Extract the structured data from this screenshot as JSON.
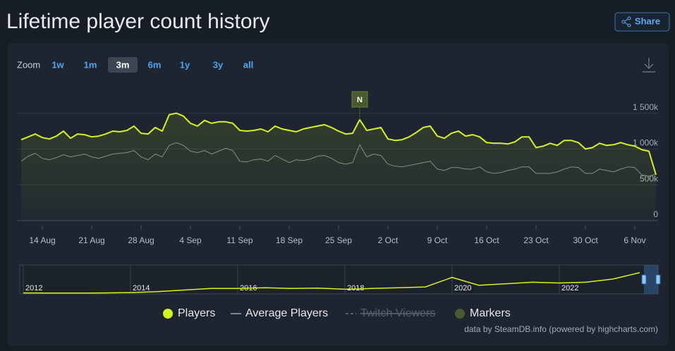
{
  "header": {
    "title": "Lifetime player count history",
    "share": "Share"
  },
  "zoom": {
    "label": "Zoom",
    "options": [
      "1w",
      "1m",
      "3m",
      "6m",
      "1y",
      "3y",
      "all"
    ],
    "selected": 2
  },
  "chart_data": {
    "type": "line",
    "categories": [
      null,
      null,
      null,
      "14 Aug",
      null,
      null,
      null,
      null,
      null,
      null,
      "21 Aug",
      null,
      null,
      null,
      null,
      null,
      null,
      "28 Aug",
      null,
      null,
      null,
      null,
      null,
      null,
      "4 Sep",
      null,
      null,
      null,
      null,
      null,
      null,
      "11 Sep",
      null,
      null,
      null,
      null,
      null,
      null,
      "18 Sep",
      null,
      null,
      null,
      null,
      null,
      null,
      "25 Sep",
      null,
      null,
      null,
      null,
      null,
      null,
      "2 Oct",
      null,
      null,
      null,
      null,
      null,
      null,
      "9 Oct",
      null,
      null,
      null,
      null,
      null,
      null,
      "16 Oct",
      null,
      null,
      null,
      null,
      null,
      null,
      "23 Oct",
      null,
      null,
      null,
      null,
      null,
      null,
      "30 Oct",
      null,
      null,
      null,
      null,
      null,
      null,
      "6 Nov",
      null,
      null,
      null
    ],
    "series": [
      {
        "name": "Players",
        "color": "#d2f51f",
        "values": [
          1130000,
          1170000,
          1210000,
          1160000,
          1140000,
          1180000,
          1250000,
          1150000,
          1210000,
          1200000,
          1170000,
          1180000,
          1210000,
          1250000,
          1240000,
          1260000,
          1320000,
          1220000,
          1210000,
          1300000,
          1250000,
          1480000,
          1500000,
          1460000,
          1360000,
          1320000,
          1400000,
          1360000,
          1380000,
          1380000,
          1360000,
          1260000,
          1250000,
          1260000,
          1280000,
          1240000,
          1320000,
          1280000,
          1260000,
          1240000,
          1280000,
          1300000,
          1320000,
          1340000,
          1300000,
          1250000,
          1210000,
          1220000,
          1410000,
          1260000,
          1280000,
          1300000,
          1140000,
          1120000,
          1130000,
          1170000,
          1230000,
          1300000,
          1320000,
          1180000,
          1150000,
          1220000,
          1250000,
          1180000,
          1200000,
          1170000,
          1090000,
          1080000,
          1080000,
          1070000,
          1100000,
          1170000,
          1170000,
          1020000,
          1040000,
          1080000,
          1050000,
          1120000,
          1120000,
          1090000,
          1000000,
          1020000,
          1080000,
          1050000,
          1060000,
          1090000,
          1060000,
          1040000,
          990000,
          970000,
          640000
        ]
      },
      {
        "name": "Average Players",
        "color": "#7f858c",
        "values": [
          830000,
          900000,
          940000,
          870000,
          850000,
          880000,
          920000,
          890000,
          910000,
          930000,
          890000,
          870000,
          900000,
          930000,
          940000,
          950000,
          980000,
          890000,
          850000,
          930000,
          890000,
          1050000,
          1090000,
          1050000,
          970000,
          950000,
          980000,
          930000,
          970000,
          1010000,
          980000,
          830000,
          820000,
          850000,
          860000,
          830000,
          910000,
          860000,
          810000,
          850000,
          840000,
          860000,
          900000,
          910000,
          870000,
          810000,
          790000,
          810000,
          1060000,
          890000,
          930000,
          910000,
          790000,
          760000,
          750000,
          770000,
          790000,
          810000,
          830000,
          720000,
          700000,
          740000,
          740000,
          720000,
          720000,
          750000,
          680000,
          660000,
          670000,
          700000,
          720000,
          750000,
          750000,
          660000,
          660000,
          660000,
          680000,
          720000,
          750000,
          740000,
          660000,
          660000,
          720000,
          700000,
          680000,
          720000,
          750000,
          740000,
          640000,
          620000,
          650000
        ]
      }
    ],
    "hidden_series": [
      {
        "name": "Twitch Viewers",
        "color": "#56606b"
      }
    ],
    "markers": {
      "name": "Markers",
      "color": "#4b5a2e",
      "items": [
        {
          "at": 48,
          "label": "N"
        }
      ]
    },
    "ylim": [
      0,
      1900000
    ],
    "yticks": [
      0,
      {
        "value": 500000,
        "label": "500k"
      },
      {
        "value": 1000000,
        "label": "1 000k"
      },
      {
        "value": 1500000,
        "label": "1 500k"
      }
    ],
    "grid": true
  },
  "navigator": {
    "type": "line",
    "categories": [
      "2012",
      null,
      null,
      null,
      "2014",
      null,
      null,
      null,
      "2016",
      null,
      null,
      null,
      "2018",
      null,
      null,
      null,
      "2020",
      null,
      null,
      null,
      "2022",
      null,
      null,
      null
    ],
    "values": [
      20000,
      10000,
      10000,
      20000,
      40000,
      100000,
      200000,
      300000,
      300000,
      350000,
      300000,
      320000,
      250000,
      300000,
      350000,
      400000,
      1000000,
      500000,
      600000,
      700000,
      650000,
      700000,
      900000,
      1300000
    ],
    "color": "#d2f51f",
    "ylim": [
      0,
      1700000
    ]
  },
  "credit": "data by SteamDB.info (powered by highcharts.com)"
}
